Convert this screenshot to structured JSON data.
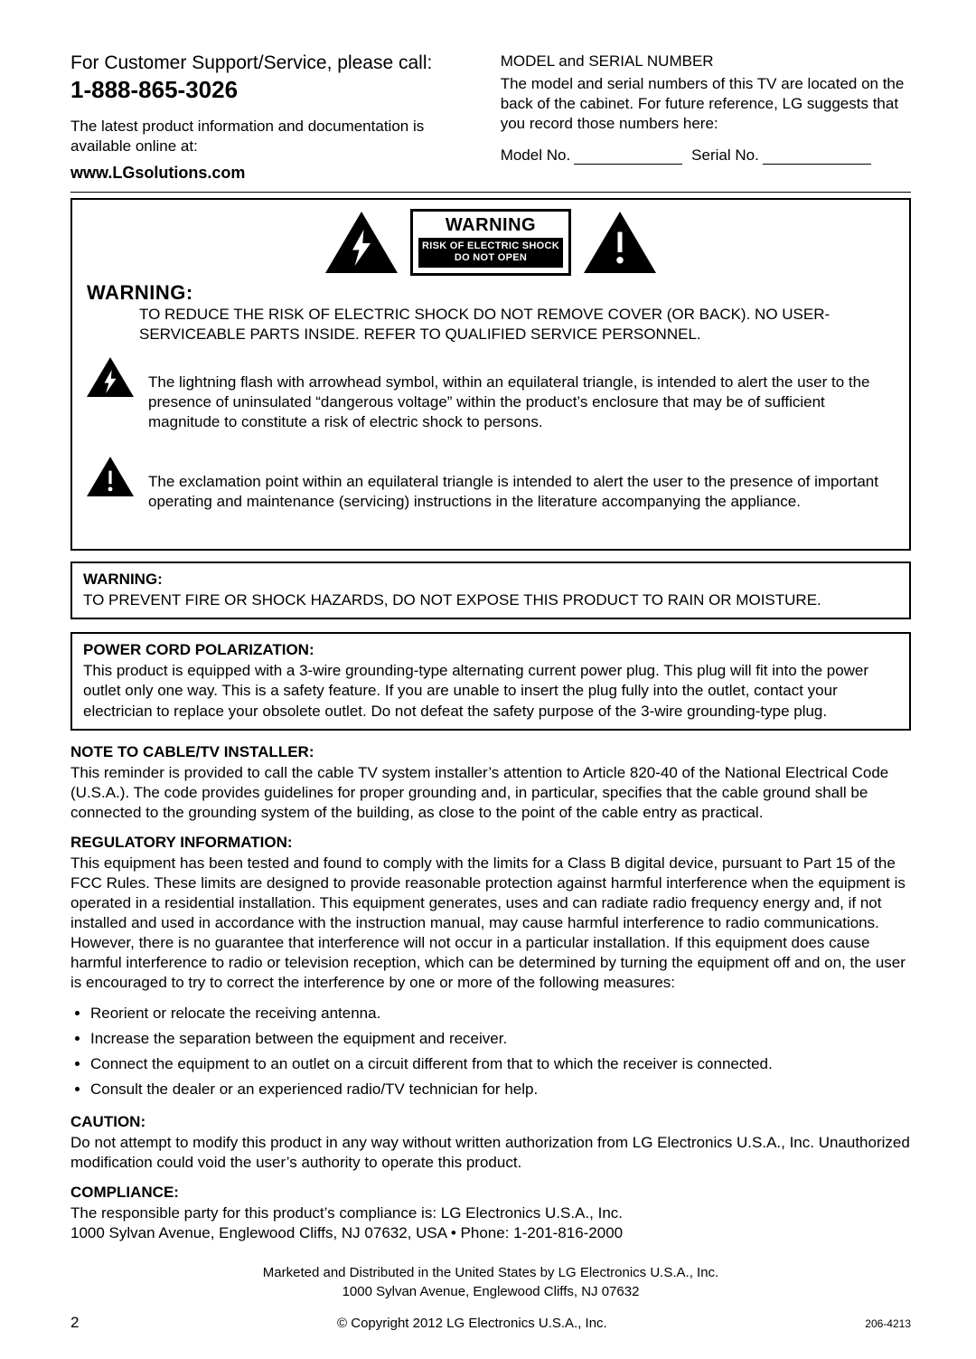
{
  "header": {
    "support_line": "For Customer Support/Service, please call:",
    "phone": "1-888-865-3026",
    "info_line": "The latest product information and documentation is available online at:",
    "website": "www.LGsolutions.com",
    "model_serial_heading": "MODEL and SERIAL NUMBER",
    "model_serial_text": "The model and serial numbers of this TV are located on the back of the cabinet. For future reference, LG suggests that you record those numbers here:",
    "model_label": "Model No.",
    "serial_label": "Serial No."
  },
  "warning_panel": {
    "box_title": "WARNING",
    "box_line1": "RISK OF ELECTRIC SHOCK",
    "box_line2": "DO NOT OPEN",
    "warning_title": "WARNING:",
    "warning_body": "TO REDUCE THE RISK OF ELECTRIC SHOCK DO NOT REMOVE COVER (OR BACK). NO USER-SERVICEABLE PARTS INSIDE. REFER TO QUALIFIED SERVICE PERSONNEL.",
    "bolt_text": "The lightning flash with arrowhead symbol, within an equilateral triangle, is intended to alert the user to the presence of uninsulated “dangerous voltage” within the product’s enclosure that may be of sufficient magnitude to constitute a risk of electric shock to persons.",
    "excl_text": "The exclamation point within an equilateral triangle is intended to alert the user to the presence of important operating and maintenance (servicing) instructions in the literature accompanying the appliance."
  },
  "boxed": {
    "warn_head": "WARNING:",
    "warn_body": "TO PREVENT FIRE OR SHOCK HAZARDS, DO NOT EXPOSE THIS PRODUCT TO RAIN OR MOISTURE.",
    "polar_head": "POWER CORD POLARIZATION:",
    "polar_body": "This product is equipped with a 3-wire grounding-type alternating current power plug. This plug will fit into the power outlet only one way. This is a safety feature. If you are unable to insert the plug fully into the outlet, contact your electrician to replace your obsolete outlet. Do not defeat the safety purpose of the 3-wire grounding-type plug."
  },
  "sections": {
    "installer_head": "NOTE TO CABLE/TV INSTALLER:",
    "installer_body": "This reminder is provided to call the cable TV system installer’s attention to Article 820-40 of the National Electrical Code (U.S.A.). The code provides guidelines for proper grounding and, in particular, specifies that the cable ground shall be connected to the grounding system of the building, as close to the point of the cable entry as practical.",
    "reg_head": "REGULATORY INFORMATION:",
    "reg_body": "This equipment has been tested and found to comply with the limits for a Class B digital device, pursuant to Part 15 of the FCC Rules. These limits are designed to provide reasonable protection against harmful interference when the equipment is operated in a residential installation. This equipment generates, uses and can radiate radio frequency energy and, if not installed and used in accordance with the instruction manual, may cause harmful interference to radio communications. However, there is no guarantee that interference will not occur in a particular installation. If this equipment does cause harmful interference to radio or television reception, which can be determined by turning the equipment off and on, the user is encouraged to try to correct the interference by one or more of the following measures:",
    "reg_bullets": [
      "Reorient or relocate the receiving antenna.",
      "Increase the separation between the equipment and receiver.",
      "Connect the equipment to an outlet on a circuit different from that to which the receiver is connected.",
      "Consult the dealer or an experienced radio/TV technician for help."
    ],
    "caution_head": "CAUTION:",
    "caution_body": "Do not attempt to modify this product in any way without written authorization from LG Electronics U.S.A., Inc. Unauthorized modification could void the user’s authority to operate this product.",
    "compliance_head": "COMPLIANCE:",
    "compliance_body1": "The responsible party for this product’s compliance is: LG Electronics U.S.A., Inc.",
    "compliance_body2": "1000 Sylvan Avenue, Englewood Cliffs, NJ 07632, USA • Phone: 1-201-816-2000"
  },
  "footer": {
    "line1": "Marketed and Distributed in the United States by LG Electronics U.S.A., Inc.",
    "line2": "1000 Sylvan Avenue, Englewood Cliffs, NJ 07632",
    "page_number": "2",
    "copyright": "© Copyright 2012 LG Electronics U.S.A., Inc.",
    "doc_code": "206-4213"
  }
}
